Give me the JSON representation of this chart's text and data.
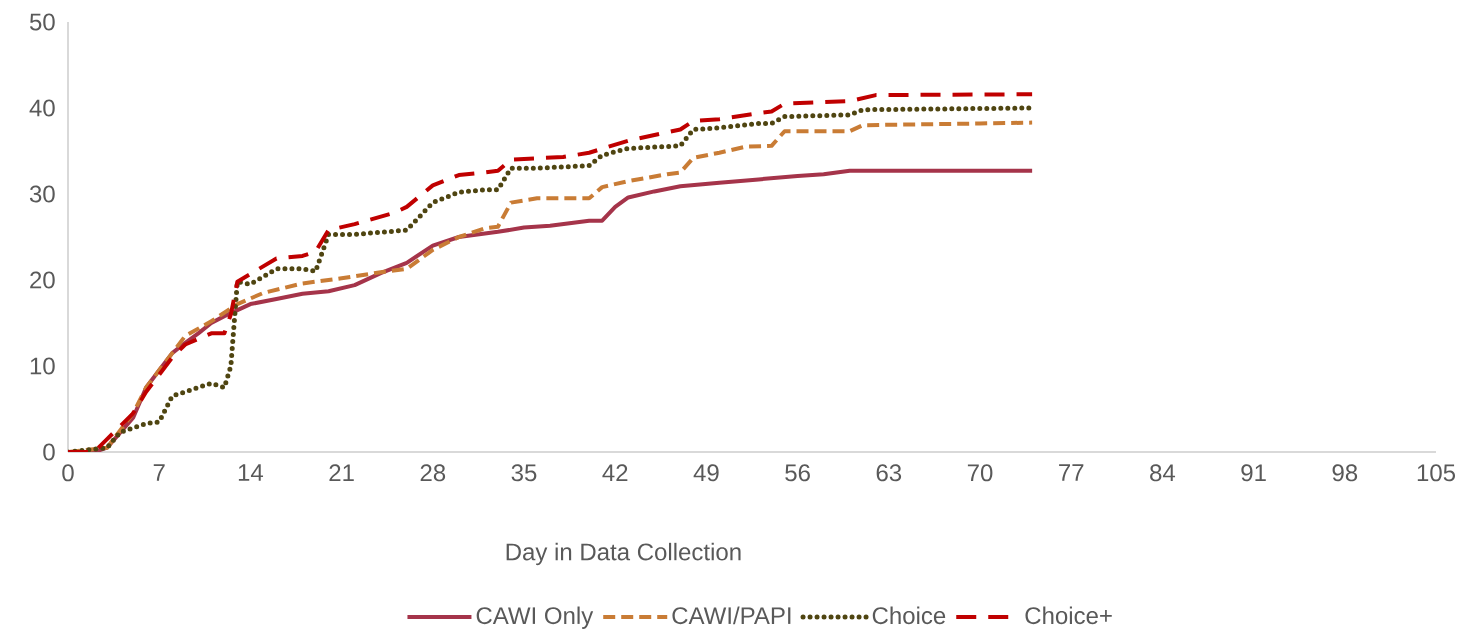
{
  "chart_data": {
    "type": "line",
    "xlabel": "Day in Data Collection",
    "xlim": [
      0,
      105
    ],
    "ylim": [
      0,
      50
    ],
    "xticks": [
      0,
      7,
      14,
      21,
      28,
      35,
      42,
      49,
      56,
      63,
      70,
      77,
      84,
      91,
      98,
      105
    ],
    "yticks": [
      0,
      10,
      20,
      30,
      40,
      50
    ],
    "grid": false,
    "legend": "bottom",
    "marker": "none",
    "series": [
      {
        "name": "CAWI Only",
        "color": "#a5344a",
        "line_style": "solid",
        "x": [
          0,
          2,
          3,
          5,
          6,
          7,
          8,
          9,
          10,
          11,
          12,
          13,
          14,
          16,
          18,
          20,
          22,
          24,
          26,
          28,
          30,
          33,
          35,
          37,
          40,
          41,
          42,
          43,
          45,
          47,
          50,
          53,
          56,
          58,
          60,
          74
        ],
        "values": [
          0,
          0,
          0.5,
          4,
          7.5,
          9.5,
          11.5,
          12.7,
          13.8,
          15,
          15.8,
          16.5,
          17.2,
          17.8,
          18.4,
          18.7,
          19.4,
          20.8,
          22,
          24,
          25,
          25.6,
          26.1,
          26.3,
          26.9,
          26.9,
          28.5,
          29.6,
          30.3,
          30.9,
          31.3,
          31.7,
          32.1,
          32.3,
          32.7,
          32.7
        ]
      },
      {
        "name": "CAWI/PAPI",
        "color": "#c97c35",
        "line_style": "dashed",
        "x": [
          0,
          3,
          5,
          6,
          7,
          8,
          9,
          11,
          13,
          15,
          18,
          21,
          24,
          26,
          28,
          30,
          32,
          33,
          34,
          36,
          40,
          41,
          43,
          46,
          47,
          48,
          50,
          52,
          54,
          55,
          60,
          61,
          70,
          74
        ],
        "values": [
          0,
          0.5,
          4.5,
          7.5,
          9.5,
          11.5,
          13.5,
          15.2,
          17.2,
          18.5,
          19.6,
          20.2,
          20.9,
          21.3,
          23.5,
          25,
          26,
          26.2,
          29,
          29.5,
          29.5,
          30.8,
          31.5,
          32.3,
          32.5,
          34.2,
          34.8,
          35.5,
          35.6,
          37.3,
          37.3,
          38,
          38.2,
          38.3
        ]
      },
      {
        "name": "Choice",
        "color": "#4f4511",
        "line_style": "dotted",
        "x": [
          0,
          3,
          4,
          6,
          7,
          8,
          10,
          11,
          12,
          12.5,
          13,
          14,
          16,
          18,
          19,
          20,
          22,
          26,
          28,
          30,
          32,
          33,
          34,
          36,
          40,
          41,
          43,
          47,
          48,
          50,
          53,
          54,
          55,
          60,
          61,
          74
        ],
        "values": [
          0,
          0.5,
          2.3,
          3.3,
          3.5,
          6.5,
          7.5,
          8,
          7.5,
          10,
          19.8,
          19.5,
          21.3,
          21.3,
          21,
          25.3,
          25.3,
          25.8,
          29,
          30.2,
          30.5,
          30.5,
          33,
          33,
          33.3,
          34.5,
          35.3,
          35.6,
          37.5,
          37.7,
          38.2,
          38.2,
          39,
          39.2,
          39.8,
          40
        ]
      },
      {
        "name": "Choice+",
        "color": "#c00000",
        "line_style": "dashed",
        "x": [
          0,
          2,
          3,
          5,
          6,
          7,
          8,
          9,
          11,
          12,
          12.5,
          13,
          14,
          16,
          18,
          19,
          20,
          22,
          25,
          26,
          28,
          30,
          32,
          33,
          34,
          38,
          40,
          43,
          47,
          48,
          50,
          53,
          54,
          55,
          60,
          62,
          74
        ],
        "values": [
          0,
          0,
          1.5,
          4.5,
          7,
          9,
          11,
          12.5,
          13.8,
          13.8,
          16,
          19.8,
          20.7,
          22.5,
          22.8,
          23.3,
          25.8,
          26.5,
          27.8,
          28.5,
          31,
          32.2,
          32.5,
          32.7,
          34,
          34.3,
          34.8,
          36.2,
          37.5,
          38.5,
          38.7,
          39.4,
          39.6,
          40.5,
          40.8,
          41.5,
          41.6
        ]
      }
    ]
  }
}
